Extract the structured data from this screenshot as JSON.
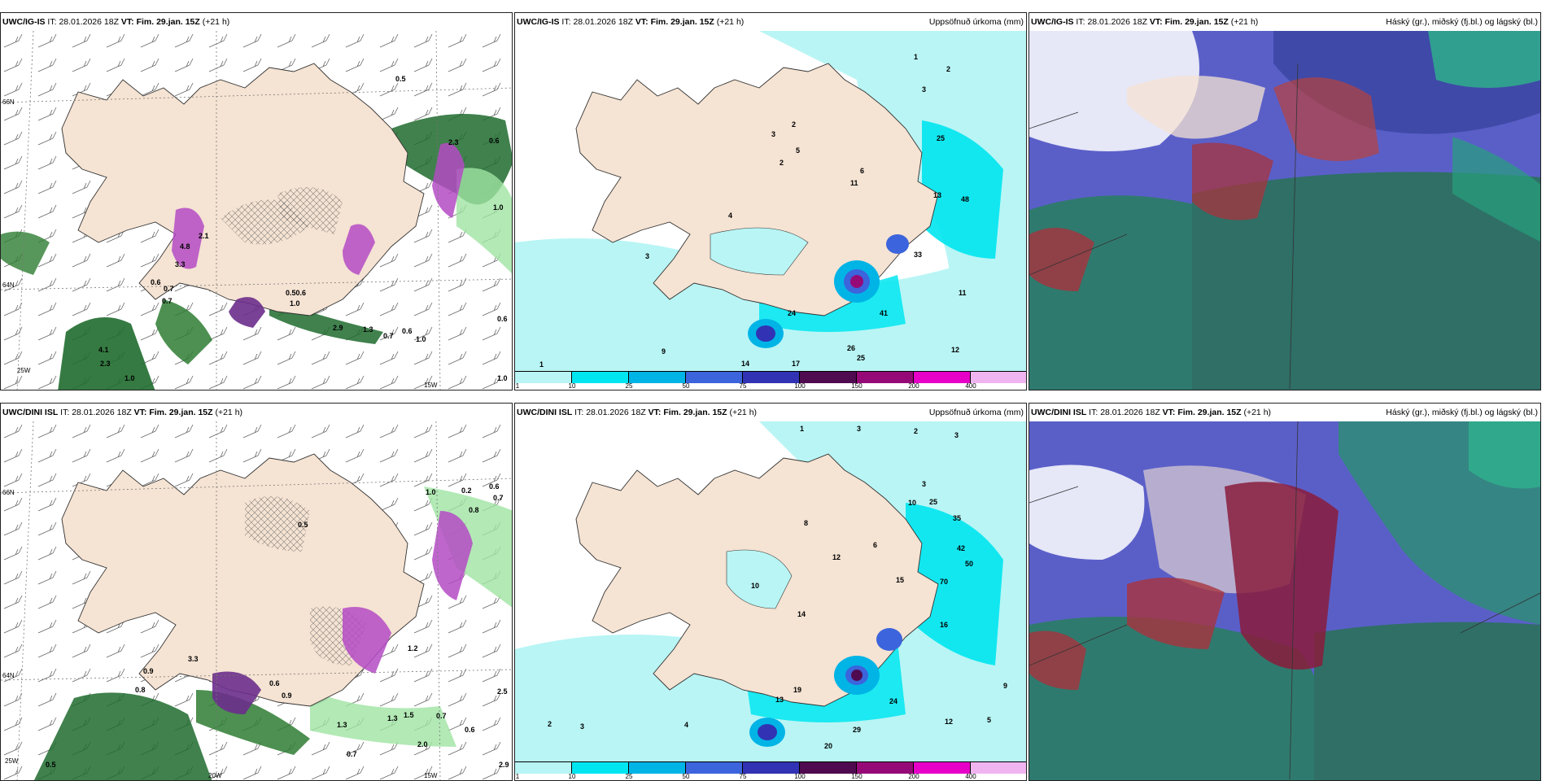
{
  "title_common": {
    "it_label": "IT:",
    "it_value": "28.01.2026 18Z",
    "vt_label": "VT:",
    "vt_value": "Fim. 29.jan. 15Z",
    "lead": "(+21 h)"
  },
  "rows": [
    {
      "model": "UWC/IG-IS",
      "panels": [
        {
          "id": "snow-wind",
          "right_title": ""
        },
        {
          "id": "accum-precip",
          "right_title": "Uppsöfnuð úrkoma (mm)"
        },
        {
          "id": "cloud-cover",
          "right_title": "Háský (gr.), miðský (fj.bl.) og lágský (bl.)"
        }
      ]
    },
    {
      "model": "UWC/DINI ISL",
      "panels": [
        {
          "id": "snow-wind",
          "right_title": ""
        },
        {
          "id": "accum-precip",
          "right_title": "Uppsöfnuð úrkoma (mm)"
        },
        {
          "id": "cloud-cover",
          "right_title": "Háský (gr.), miðský (fj.bl.) og lágský (bl.)"
        }
      ]
    }
  ],
  "colorbar": {
    "labels": [
      "1",
      "10",
      "25",
      "50",
      "75",
      "100",
      "150",
      "200",
      "400"
    ],
    "colors": [
      "#b9f5f5",
      "#00e6f0",
      "#00b4e6",
      "#3c64dc",
      "#3232b4",
      "#500a50",
      "#960a78",
      "#e600c8",
      "#f0b4f0"
    ]
  },
  "axis_labels": {
    "lat_66": "66N",
    "lat_64": "64N",
    "lon_25": "25W",
    "lon_20": "20W",
    "lon_15": "15W"
  },
  "top_snow_values": [
    "0.5",
    "2.3",
    "0.6",
    "1.0",
    "2.1",
    "4.8",
    "3.3",
    "0.6",
    "0.7",
    "0.7",
    "0.50.6",
    "1.0",
    "2.9",
    "1.3",
    "0.7",
    "0.6",
    "1.0",
    "4.1",
    "2.3",
    "1.0",
    "0.6",
    "1.0"
  ],
  "top_precip_values": [
    "1",
    "2",
    "3",
    "3",
    "2",
    "2",
    "5",
    "4",
    "3",
    "6",
    "11",
    "25",
    "13",
    "48",
    "33",
    "41",
    "24",
    "26",
    "25",
    "12",
    "17",
    "14",
    "11",
    "9",
    "1"
  ],
  "bottom_snow_values": [
    "1.0",
    "0.2",
    "0.6",
    "0.7",
    "0.8",
    "0.5",
    "3.3",
    "0.9",
    "0.8",
    "0.6",
    "0.9",
    "1.2",
    "1.3",
    "1.5",
    "0.7",
    "2.0",
    "0.6",
    "1.3",
    "0.7",
    "2.5",
    "0.5",
    "2.9"
  ],
  "bottom_precip_values": [
    "1",
    "3",
    "2",
    "3",
    "3",
    "10",
    "10",
    "8",
    "6",
    "12",
    "25",
    "35",
    "42",
    "50",
    "70",
    "15",
    "16",
    "14",
    "19",
    "13",
    "24",
    "29",
    "20",
    "12",
    "9",
    "5",
    "2",
    "3",
    "4"
  ]
}
